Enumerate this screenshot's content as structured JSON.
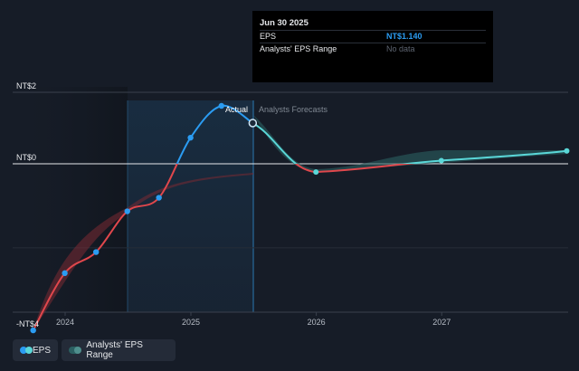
{
  "tooltip": {
    "date": "Jun 30 2025",
    "eps_label": "EPS",
    "eps_value": "NT$1.140",
    "range_label": "Analysts' EPS Range",
    "range_value": "No data"
  },
  "legend": {
    "eps": "EPS",
    "range": "Analysts' EPS Range"
  },
  "section_labels": {
    "actual": "Actual",
    "forecast": "Analysts Forecasts"
  },
  "colors": {
    "background": "#161c27",
    "actual_line": "#2b9cf2",
    "forecast_line": "#5ad7d8",
    "negative_line": "#e0474c",
    "forecast_band": "#2b5f61"
  },
  "chart_data": {
    "type": "line",
    "ylim": [
      -4.8,
      2.0
    ],
    "y_tick_labels": [
      "NT$2",
      "NT$0",
      "-NT$4"
    ],
    "x_tick_labels": [
      "2024",
      "2025",
      "2026",
      "2027"
    ],
    "series": [
      {
        "name": "EPS",
        "points": [
          {
            "x": "2023-09-30",
            "y": -4.66
          },
          {
            "x": "2023-12-31",
            "y": -3.06
          },
          {
            "x": "2024-03-31",
            "y": -2.47
          },
          {
            "x": "2024-06-30",
            "y": -1.33
          },
          {
            "x": "2024-09-30",
            "y": -0.95
          },
          {
            "x": "2024-12-31",
            "y": 0.73
          },
          {
            "x": "2025-03-31",
            "y": 1.62
          },
          {
            "x": "2025-06-30",
            "y": 1.14
          }
        ]
      },
      {
        "name": "Forecast",
        "points": [
          {
            "x": "2025-06-30",
            "y": 1.14
          },
          {
            "x": "2025-12-31",
            "y": -0.23
          },
          {
            "x": "2026-12-31",
            "y": 0.09
          },
          {
            "x": "2027-12-31",
            "y": 0.36
          }
        ]
      }
    ]
  }
}
